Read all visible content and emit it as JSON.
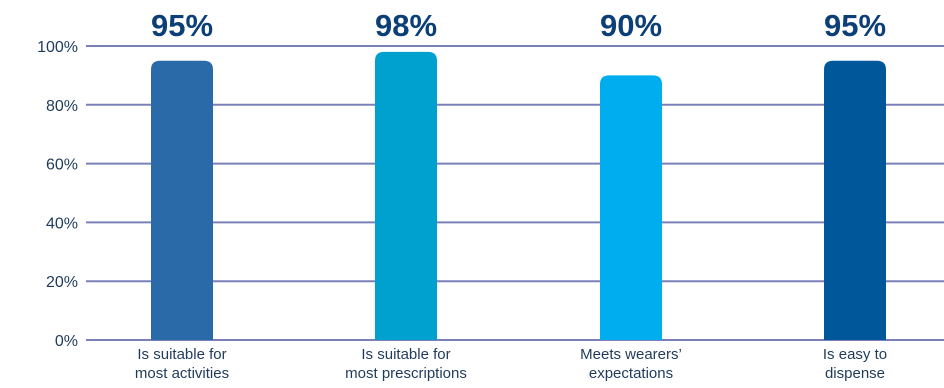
{
  "chart_data": {
    "type": "bar",
    "categories": [
      [
        "Is suitable for",
        "most activities"
      ],
      [
        "Is suitable for",
        "most prescriptions"
      ],
      [
        "Meets wearers’",
        "expectations"
      ],
      [
        "Is easy to",
        "dispense"
      ]
    ],
    "values": [
      95,
      98,
      90,
      95
    ],
    "value_labels": [
      "95%",
      "98%",
      "90%",
      "95%"
    ],
    "bar_colors": [
      "#2a6aa8",
      "#00a0cf",
      "#00aeef",
      "#00579a"
    ],
    "ylim": [
      0,
      100
    ],
    "yticks": [
      0,
      20,
      40,
      60,
      80,
      100
    ],
    "ytick_labels": [
      "0%",
      "20%",
      "40%",
      "60%",
      "80%",
      "100%"
    ],
    "gridlines": true,
    "grid_color": "#7b80b8",
    "title": "",
    "xlabel": "",
    "ylabel": ""
  }
}
